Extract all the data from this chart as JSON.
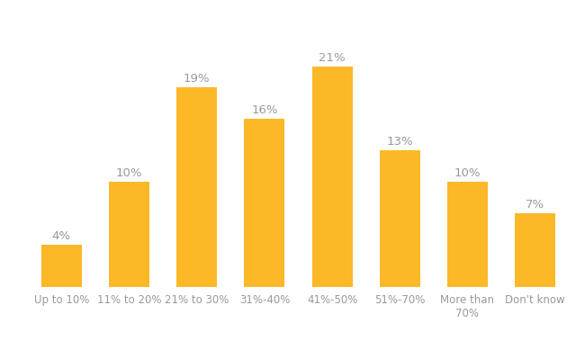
{
  "categories": [
    "Up to 10%",
    "11% to 20%",
    "21% to 30%",
    "31%-40%",
    "41%-50%",
    "51%-70%",
    "More than\n70%",
    "Don't know"
  ],
  "values": [
    4,
    10,
    19,
    16,
    21,
    13,
    10,
    7
  ],
  "bar_color": "#FDB827",
  "label_color": "#999999",
  "background_color": "#ffffff",
  "bar_width": 0.6,
  "label_fontsize": 9.5,
  "tick_fontsize": 8.5,
  "ylim": [
    0,
    25
  ],
  "figsize": [
    6.5,
    3.89
  ],
  "dpi": 100
}
